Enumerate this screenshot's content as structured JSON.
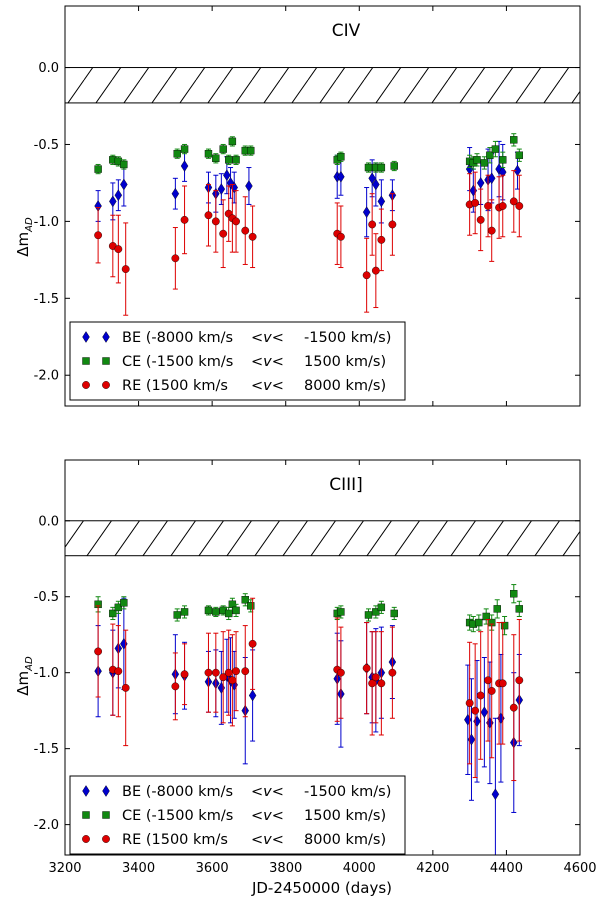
{
  "x_axis": {
    "label": "JD-2450000 (days)",
    "ticks": [
      "3200",
      "3400",
      "3600",
      "3800",
      "4000",
      "4200",
      "4400",
      "4600"
    ]
  },
  "y_axis": {
    "label": "Δm_AD",
    "label_main": "Δm",
    "label_sub": "AD"
  },
  "panels": [
    {
      "title": "CIV",
      "yticks": [
        "0.0",
        "-0.5",
        "-1.0",
        "-1.5",
        "-2.0"
      ]
    },
    {
      "title": "CIII]",
      "yticks": [
        "0.0",
        "-0.5",
        "-1.0",
        "-1.5",
        "-2.0"
      ]
    }
  ],
  "legend": [
    {
      "label": "BE (-8000 km/s",
      "ineq": "<v<",
      "tail": "-1500 km/s)",
      "color": "#0000cc",
      "marker": "diamond"
    },
    {
      "label": "CE (-1500 km/s",
      "ineq": "<v<",
      "tail": "1500 km/s)",
      "color": "#118811",
      "marker": "square"
    },
    {
      "label": "RE (1500 km/s",
      "ineq": "<v<",
      "tail": "8000 km/s)",
      "color": "#dd0000",
      "marker": "circle"
    }
  ],
  "chart_data": [
    {
      "type": "scatter",
      "title": "CIV",
      "xlabel": "JD-2450000 (days)",
      "ylabel": "Δm_AD",
      "xlim": [
        3200,
        4600
      ],
      "ylim": [
        -2.2,
        0.4
      ],
      "hatched_band": [
        -0.23,
        0.0
      ],
      "series": [
        {
          "name": "BE (-8000 km/s <v< -1500 km/s)",
          "color": "#0000cc",
          "marker": "diamond",
          "x": [
            3290,
            3330,
            3345,
            3360,
            3500,
            3525,
            3590,
            3610,
            3625,
            3640,
            3650,
            3660,
            3700,
            3940,
            3950,
            4020,
            4035,
            4045,
            4060,
            4090,
            4300,
            4310,
            4330,
            4350,
            4360,
            4380,
            4390,
            4430
          ],
          "y": [
            -0.9,
            -0.87,
            -0.83,
            -0.76,
            -0.82,
            -0.64,
            -0.78,
            -0.82,
            -0.79,
            -0.7,
            -0.75,
            -0.78,
            -0.77,
            -0.71,
            -0.71,
            -0.94,
            -0.72,
            -0.76,
            -0.87,
            -0.83,
            -0.66,
            -0.8,
            -0.75,
            -0.73,
            -0.72,
            -0.66,
            -0.68,
            -0.67
          ],
          "err": [
            0.1,
            0.12,
            0.1,
            0.14,
            0.1,
            0.1,
            0.1,
            0.12,
            0.1,
            0.12,
            0.1,
            0.1,
            0.12,
            0.14,
            0.12,
            0.16,
            0.12,
            0.14,
            0.14,
            0.1,
            0.14,
            0.14,
            0.14,
            0.2,
            0.16,
            0.18,
            0.18,
            0.12
          ]
        },
        {
          "name": "CE (-1500 km/s <v< 1500 km/s)",
          "color": "#118811",
          "marker": "square",
          "x": [
            3290,
            3330,
            3345,
            3360,
            3505,
            3525,
            3590,
            3610,
            3630,
            3645,
            3655,
            3665,
            3690,
            3705,
            3940,
            3950,
            4025,
            4045,
            4060,
            4095,
            4300,
            4310,
            4320,
            4340,
            4355,
            4370,
            4390,
            4420,
            4435
          ],
          "y": [
            -0.66,
            -0.6,
            -0.61,
            -0.63,
            -0.56,
            -0.53,
            -0.56,
            -0.59,
            -0.53,
            -0.6,
            -0.48,
            -0.6,
            -0.54,
            -0.54,
            -0.6,
            -0.58,
            -0.65,
            -0.65,
            -0.65,
            -0.64,
            -0.61,
            -0.62,
            -0.6,
            -0.62,
            -0.57,
            -0.53,
            -0.6,
            -0.47,
            -0.57
          ],
          "err": [
            0.03,
            0.03,
            0.03,
            0.03,
            0.03,
            0.03,
            0.03,
            0.03,
            0.03,
            0.03,
            0.03,
            0.03,
            0.03,
            0.03,
            0.03,
            0.03,
            0.03,
            0.03,
            0.03,
            0.03,
            0.04,
            0.04,
            0.04,
            0.04,
            0.05,
            0.05,
            0.05,
            0.04,
            0.04
          ]
        },
        {
          "name": "RE (1500 km/s <v< 8000 km/s)",
          "color": "#dd0000",
          "marker": "circle",
          "x": [
            3290,
            3330,
            3345,
            3365,
            3500,
            3525,
            3590,
            3610,
            3630,
            3645,
            3655,
            3665,
            3690,
            3710,
            3940,
            3950,
            4020,
            4035,
            4045,
            4060,
            4090,
            4300,
            4315,
            4330,
            4350,
            4360,
            4380,
            4390,
            4420,
            4435
          ],
          "y": [
            -1.09,
            -1.16,
            -1.18,
            -1.31,
            -1.24,
            -0.99,
            -0.96,
            -1.0,
            -1.08,
            -0.95,
            -0.98,
            -1.0,
            -1.06,
            -1.1,
            -1.08,
            -1.1,
            -1.35,
            -1.02,
            -1.32,
            -1.12,
            -1.02,
            -0.89,
            -0.88,
            -0.99,
            -0.9,
            -1.06,
            -0.91,
            -0.9,
            -0.87,
            -0.9
          ],
          "err": [
            0.18,
            0.2,
            0.22,
            0.3,
            0.2,
            0.22,
            0.2,
            0.2,
            0.22,
            0.18,
            0.22,
            0.2,
            0.22,
            0.2,
            0.2,
            0.2,
            0.24,
            0.2,
            0.24,
            0.2,
            0.2,
            0.2,
            0.2,
            0.2,
            0.2,
            0.2,
            0.2,
            0.2,
            0.2,
            0.2
          ]
        }
      ]
    },
    {
      "type": "scatter",
      "title": "CIII]",
      "xlabel": "JD-2450000 (days)",
      "ylabel": "Δm_AD",
      "xlim": [
        3200,
        4600
      ],
      "ylim": [
        -2.2,
        0.4
      ],
      "hatched_band": [
        -0.23,
        0.0
      ],
      "series": [
        {
          "name": "BE (-8000 km/s <v< -1500 km/s)",
          "color": "#0000cc",
          "marker": "diamond",
          "x": [
            3290,
            3330,
            3345,
            3360,
            3500,
            3525,
            3590,
            3610,
            3625,
            3640,
            3650,
            3660,
            3690,
            3710,
            3940,
            3950,
            4020,
            4035,
            4045,
            4060,
            4090,
            4295,
            4305,
            4320,
            4340,
            4355,
            4370,
            4385,
            4420,
            4435
          ],
          "y": [
            -0.99,
            -1.0,
            -0.84,
            -0.81,
            -1.01,
            -1.02,
            -1.06,
            -1.07,
            -1.1,
            -1.02,
            -1.05,
            -1.08,
            -1.25,
            -1.15,
            -1.04,
            -1.14,
            -0.97,
            -1.03,
            -1.05,
            -1.0,
            -0.93,
            -1.31,
            -1.44,
            -1.32,
            -1.26,
            -1.33,
            -1.8,
            -1.3,
            -1.46,
            -1.18
          ],
          "err": [
            0.3,
            0.28,
            0.26,
            0.3,
            0.26,
            0.22,
            0.2,
            0.22,
            0.24,
            0.24,
            0.28,
            0.22,
            0.35,
            0.3,
            0.3,
            0.35,
            0.3,
            0.3,
            0.34,
            0.3,
            0.24,
            0.36,
            0.4,
            0.4,
            0.36,
            0.4,
            0.5,
            0.42,
            0.46,
            0.3
          ]
        },
        {
          "name": "CE (-1500 km/s <v< 1500 km/s)",
          "color": "#118811",
          "marker": "square",
          "x": [
            3290,
            3330,
            3345,
            3360,
            3505,
            3525,
            3590,
            3610,
            3630,
            3645,
            3655,
            3665,
            3690,
            3705,
            3940,
            3950,
            4025,
            4045,
            4060,
            4095,
            4300,
            4310,
            4325,
            4345,
            4360,
            4375,
            4395,
            4420,
            4435
          ],
          "y": [
            -0.55,
            -0.61,
            -0.57,
            -0.54,
            -0.62,
            -0.6,
            -0.59,
            -0.6,
            -0.59,
            -0.61,
            -0.55,
            -0.59,
            -0.52,
            -0.56,
            -0.61,
            -0.6,
            -0.62,
            -0.6,
            -0.57,
            -0.61,
            -0.67,
            -0.68,
            -0.67,
            -0.63,
            -0.67,
            -0.58,
            -0.69,
            -0.48,
            -0.58
          ],
          "err": [
            0.05,
            0.04,
            0.04,
            0.04,
            0.04,
            0.04,
            0.03,
            0.03,
            0.03,
            0.04,
            0.04,
            0.04,
            0.04,
            0.04,
            0.04,
            0.04,
            0.04,
            0.04,
            0.04,
            0.04,
            0.05,
            0.05,
            0.05,
            0.05,
            0.05,
            0.06,
            0.06,
            0.06,
            0.05
          ]
        },
        {
          "name": "RE (1500 km/s <v< 8000 km/s)",
          "color": "#dd0000",
          "marker": "circle",
          "x": [
            3290,
            3330,
            3345,
            3365,
            3500,
            3525,
            3590,
            3610,
            3630,
            3645,
            3655,
            3665,
            3690,
            3710,
            3940,
            3950,
            4020,
            4035,
            4045,
            4060,
            4090,
            4300,
            4315,
            4330,
            4350,
            4360,
            4380,
            4390,
            4420,
            4435
          ],
          "y": [
            -0.86,
            -0.98,
            -0.99,
            -1.1,
            -1.09,
            -1.01,
            -1.0,
            -1.0,
            -1.03,
            -1.0,
            -1.05,
            -0.99,
            -0.99,
            -0.81,
            -0.98,
            -1.0,
            -0.97,
            -1.07,
            -1.03,
            -1.07,
            -1.0,
            -1.2,
            -1.25,
            -1.15,
            -1.05,
            -1.12,
            -1.07,
            -1.07,
            -1.23,
            -1.05
          ],
          "err": [
            0.3,
            0.3,
            0.3,
            0.38,
            0.22,
            0.2,
            0.26,
            0.26,
            0.3,
            0.28,
            0.3,
            0.26,
            0.3,
            0.3,
            0.34,
            0.3,
            0.3,
            0.34,
            0.3,
            0.34,
            0.3,
            0.4,
            0.44,
            0.42,
            0.4,
            0.44,
            0.4,
            0.4,
            0.48,
            0.4
          ]
        }
      ]
    }
  ]
}
